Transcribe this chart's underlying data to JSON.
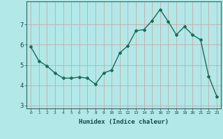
{
  "x": [
    0,
    1,
    2,
    3,
    4,
    5,
    6,
    7,
    8,
    9,
    10,
    11,
    12,
    13,
    14,
    15,
    16,
    17,
    18,
    19,
    20,
    21,
    22,
    23
  ],
  "y": [
    5.9,
    5.2,
    4.95,
    4.6,
    4.35,
    4.35,
    4.4,
    4.35,
    4.05,
    4.6,
    4.75,
    5.6,
    5.95,
    6.7,
    6.75,
    7.2,
    7.75,
    7.15,
    6.5,
    6.9,
    6.5,
    6.25,
    4.45,
    3.45
  ],
  "xlabel": "Humidex (Indice chaleur)",
  "line_color": "#1a6b5a",
  "marker": "D",
  "marker_size": 2,
  "bg_color": "#b2e8e8",
  "grid_color": "#c9a8a8",
  "xlim": [
    -0.5,
    23.5
  ],
  "ylim": [
    2.85,
    8.15
  ],
  "yticks": [
    3,
    4,
    5,
    6,
    7
  ],
  "xtick_labels": [
    "0",
    "1",
    "2",
    "3",
    "4",
    "5",
    "6",
    "7",
    "8",
    "9",
    "10",
    "11",
    "12",
    "13",
    "14",
    "15",
    "16",
    "17",
    "18",
    "19",
    "20",
    "21",
    "22",
    "23"
  ]
}
